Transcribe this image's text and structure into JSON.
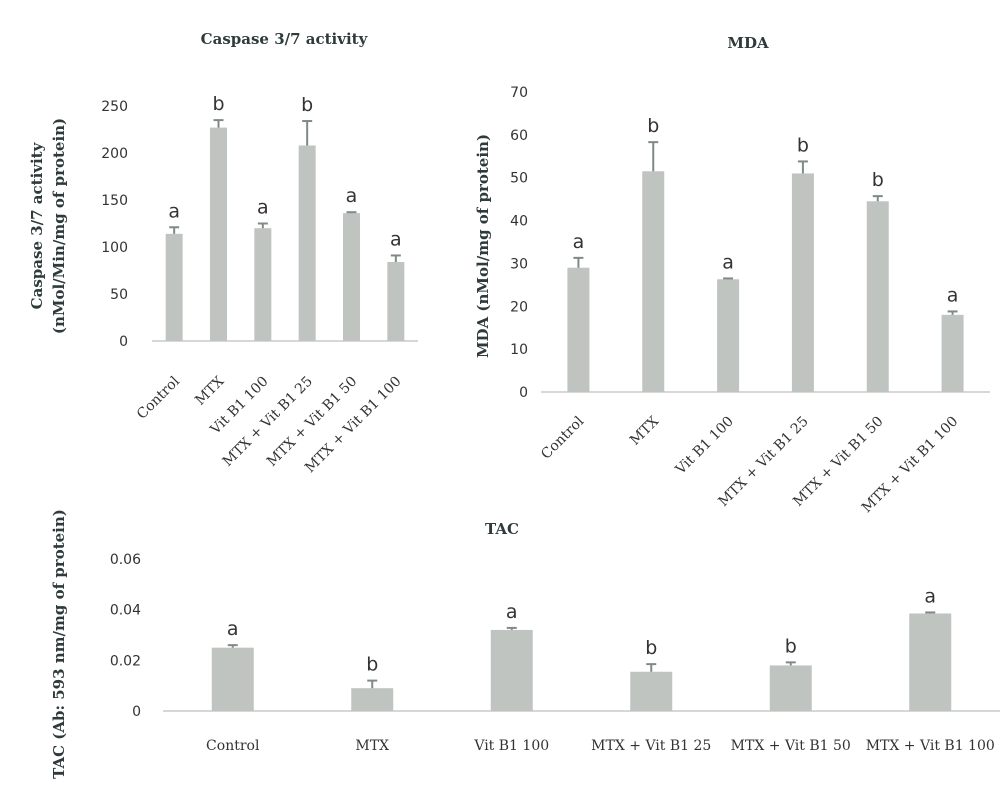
{
  "chart_data": [
    {
      "type": "bar",
      "title": "Caspase 3/7 activity",
      "ylabel_lines": [
        "Caspase 3/7 activity",
        "(nMol/Min/mg of protein)"
      ],
      "categories": [
        "Control",
        "MTX",
        "Vit B1 100",
        "MTX + Vit B1 25",
        "MTX + Vit B1 50",
        "MTX + Vit B1 100"
      ],
      "values": [
        114,
        227,
        120,
        208,
        136,
        84
      ],
      "errors": [
        7,
        8,
        5,
        26,
        1,
        7
      ],
      "significance": [
        "a",
        "b",
        "a",
        "b",
        "a",
        "a"
      ],
      "ylim": [
        0,
        250
      ],
      "yticks": [
        "0",
        "50",
        "100",
        "150",
        "200",
        "250"
      ],
      "bar_color": "#bfc4c1"
    },
    {
      "type": "bar",
      "title": "MDA",
      "ylabel_lines": [
        "MDA (nMol/mg of protein)"
      ],
      "categories": [
        "Control",
        "MTX",
        "Vit B1 100",
        "MTX + Vit B1 25",
        "MTX + Vit B1 50",
        "MTX + Vit B1 100"
      ],
      "values": [
        29,
        51.5,
        26.3,
        51,
        44.5,
        18
      ],
      "errors": [
        2.3,
        6.8,
        0.2,
        2.8,
        1.2,
        0.8
      ],
      "significance": [
        "a",
        "b",
        "a",
        "b",
        "b",
        "a"
      ],
      "ylim": [
        0,
        70
      ],
      "yticks": [
        "0",
        "10",
        "20",
        "30",
        "40",
        "50",
        "60",
        "70"
      ],
      "bar_color": "#bfc4c1"
    },
    {
      "type": "bar",
      "title": "TAC",
      "ylabel_lines": [
        "TAC (Ab: 593 nm/mg of protein)"
      ],
      "categories": [
        "Control",
        "MTX",
        "Vit B1 100",
        "MTX + Vit B1 25",
        "MTX + Vit B1 50",
        "MTX + Vit B1 100"
      ],
      "values": [
        0.025,
        0.009,
        0.032,
        0.0155,
        0.018,
        0.0385
      ],
      "errors": [
        0.001,
        0.003,
        0.0008,
        0.003,
        0.0012,
        0.0004
      ],
      "significance": [
        "a",
        "b",
        "a",
        "b",
        "b",
        "a"
      ],
      "ylim": [
        0,
        0.06
      ],
      "yticks": [
        "0",
        "0.02",
        "0.04",
        "0.06"
      ],
      "bar_color": "#bfc4c1"
    }
  ]
}
